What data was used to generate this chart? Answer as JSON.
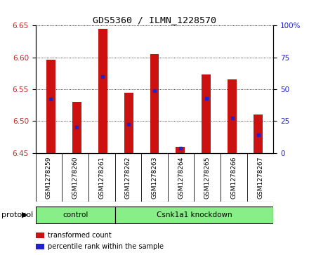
{
  "title": "GDS5360 / ILMN_1228570",
  "samples": [
    "GSM1278259",
    "GSM1278260",
    "GSM1278261",
    "GSM1278262",
    "GSM1278263",
    "GSM1278264",
    "GSM1278265",
    "GSM1278266",
    "GSM1278267"
  ],
  "bar_bottoms": [
    6.45,
    6.45,
    6.45,
    6.45,
    6.45,
    6.45,
    6.45,
    6.45,
    6.45
  ],
  "bar_tops": [
    6.596,
    6.53,
    6.645,
    6.545,
    6.605,
    6.46,
    6.573,
    6.566,
    6.51
  ],
  "percentile_values": [
    6.535,
    6.49,
    6.57,
    6.495,
    6.548,
    6.458,
    6.536,
    6.505,
    6.478
  ],
  "ylim_left": [
    6.45,
    6.65
  ],
  "ylim_right": [
    0,
    100
  ],
  "yticks_left": [
    6.45,
    6.5,
    6.55,
    6.6,
    6.65
  ],
  "yticks_right": [
    0,
    25,
    50,
    75,
    100
  ],
  "bar_color": "#cc1111",
  "percentile_color": "#2222cc",
  "protocol_groups": [
    {
      "label": "control",
      "start": 0,
      "end": 3
    },
    {
      "label": "Csnk1a1 knockdown",
      "start": 3,
      "end": 9
    }
  ],
  "protocol_label": "protocol",
  "protocol_bg_color": "#88ee88",
  "tick_label_color_left": "#cc2222",
  "tick_label_color_right": "#2222cc",
  "legend_items": [
    {
      "label": "transformed count",
      "color": "#cc1111"
    },
    {
      "label": "percentile rank within the sample",
      "color": "#2222cc"
    }
  ],
  "sample_bg_color": "#d8d8d8",
  "bar_width": 0.35
}
